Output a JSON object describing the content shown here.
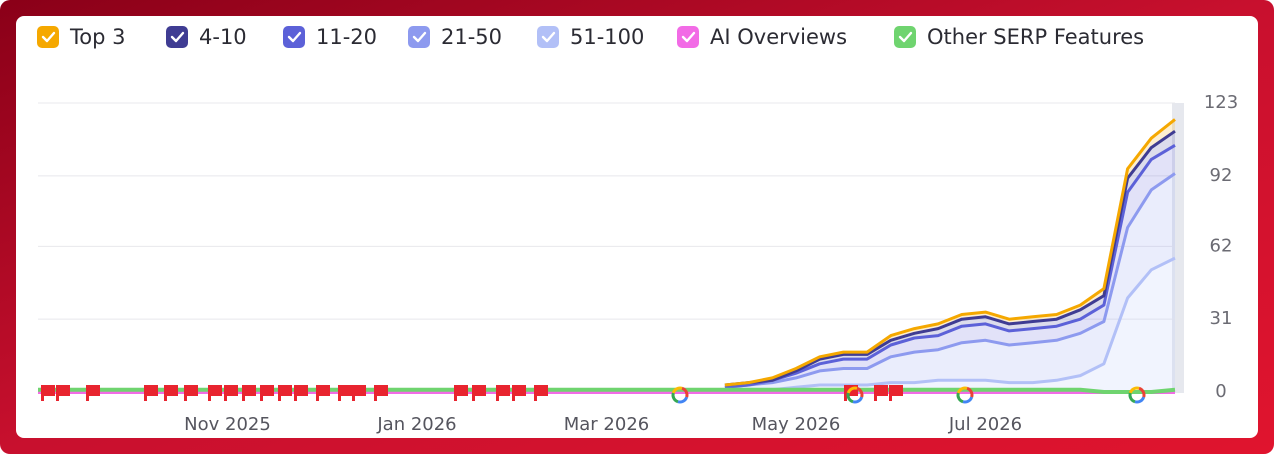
{
  "chart_data": {
    "type": "line",
    "categories": [
      null,
      null,
      null,
      null,
      null,
      null,
      null,
      null,
      "Nov 2025",
      null,
      null,
      null,
      null,
      null,
      null,
      null,
      "Jan 2026",
      null,
      null,
      null,
      null,
      null,
      null,
      null,
      "Mar 2026",
      null,
      null,
      null,
      null,
      null,
      null,
      null,
      "May 2026",
      null,
      null,
      null,
      null,
      null,
      null,
      null,
      "Jul 2026",
      null,
      null,
      null,
      null,
      null,
      null,
      null,
      null
    ],
    "series": [
      {
        "name": "Top 3",
        "color": "#f5a800",
        "values": [
          null,
          null,
          null,
          null,
          null,
          null,
          null,
          null,
          null,
          null,
          null,
          null,
          null,
          null,
          null,
          null,
          null,
          null,
          null,
          null,
          null,
          null,
          null,
          null,
          null,
          null,
          null,
          null,
          null,
          0,
          0,
          1,
          1,
          1,
          1,
          1,
          2,
          2,
          2,
          2,
          2,
          2,
          2,
          2,
          2,
          3,
          4,
          4,
          5
        ]
      },
      {
        "name": "4-10",
        "color": "#3f3c93",
        "values": [
          null,
          null,
          null,
          null,
          null,
          null,
          null,
          null,
          null,
          null,
          null,
          null,
          null,
          null,
          null,
          null,
          null,
          null,
          null,
          null,
          null,
          null,
          null,
          null,
          null,
          null,
          null,
          null,
          null,
          1,
          1,
          0,
          1,
          2,
          2,
          2,
          2,
          2,
          3,
          3,
          3,
          3,
          3,
          3,
          4,
          4,
          6,
          5,
          6
        ]
      },
      {
        "name": "11-20",
        "color": "#5c61d8",
        "values": [
          null,
          null,
          null,
          null,
          null,
          null,
          null,
          null,
          null,
          null,
          null,
          null,
          null,
          null,
          null,
          null,
          null,
          null,
          null,
          null,
          null,
          null,
          null,
          null,
          null,
          null,
          null,
          null,
          null,
          0,
          0,
          1,
          2,
          3,
          4,
          4,
          5,
          6,
          6,
          7,
          7,
          6,
          6,
          6,
          6,
          7,
          15,
          13,
          12
        ]
      },
      {
        "name": "21-50",
        "color": "#8d9aef",
        "values": [
          null,
          null,
          null,
          null,
          null,
          null,
          null,
          null,
          null,
          null,
          null,
          null,
          null,
          null,
          null,
          null,
          null,
          null,
          null,
          null,
          null,
          null,
          null,
          null,
          null,
          null,
          null,
          null,
          null,
          1,
          2,
          3,
          4,
          6,
          7,
          7,
          11,
          13,
          13,
          16,
          17,
          16,
          17,
          17,
          18,
          18,
          30,
          34,
          36
        ]
      },
      {
        "name": "51-100",
        "color": "#b2c0f7",
        "values": [
          null,
          null,
          null,
          null,
          null,
          null,
          null,
          null,
          null,
          null,
          null,
          null,
          null,
          null,
          null,
          null,
          null,
          null,
          null,
          null,
          null,
          null,
          null,
          null,
          null,
          null,
          null,
          null,
          null,
          1,
          1,
          1,
          2,
          3,
          3,
          3,
          4,
          4,
          5,
          5,
          5,
          4,
          4,
          5,
          7,
          12,
          40,
          52,
          57
        ]
      },
      {
        "name": "AI Overviews",
        "color": "#f26be6",
        "values": [
          0,
          0,
          0,
          0,
          0,
          0,
          0,
          0,
          0,
          0,
          0,
          0,
          0,
          0,
          0,
          0,
          0,
          0,
          0,
          0,
          0,
          0,
          0,
          0,
          0,
          0,
          0,
          0,
          0,
          0,
          0,
          0,
          0,
          0,
          0,
          0,
          0,
          0,
          0,
          0,
          0,
          0,
          0,
          0,
          0,
          0,
          0,
          0,
          0
        ]
      },
      {
        "name": "Other SERP Features",
        "color": "#6fd46f",
        "values": [
          1,
          1,
          1,
          1,
          1,
          1,
          1,
          1,
          1,
          1,
          1,
          1,
          1,
          1,
          1,
          1,
          1,
          1,
          1,
          1,
          1,
          1,
          1,
          1,
          1,
          1,
          1,
          1,
          1,
          1,
          1,
          1,
          1,
          1,
          1,
          1,
          1,
          1,
          1,
          1,
          1,
          1,
          1,
          1,
          1,
          0,
          0,
          0,
          1
        ]
      }
    ],
    "ylim": [
      0,
      123
    ],
    "yticks": [
      0,
      31,
      62,
      92,
      123
    ],
    "grid": true
  }
}
